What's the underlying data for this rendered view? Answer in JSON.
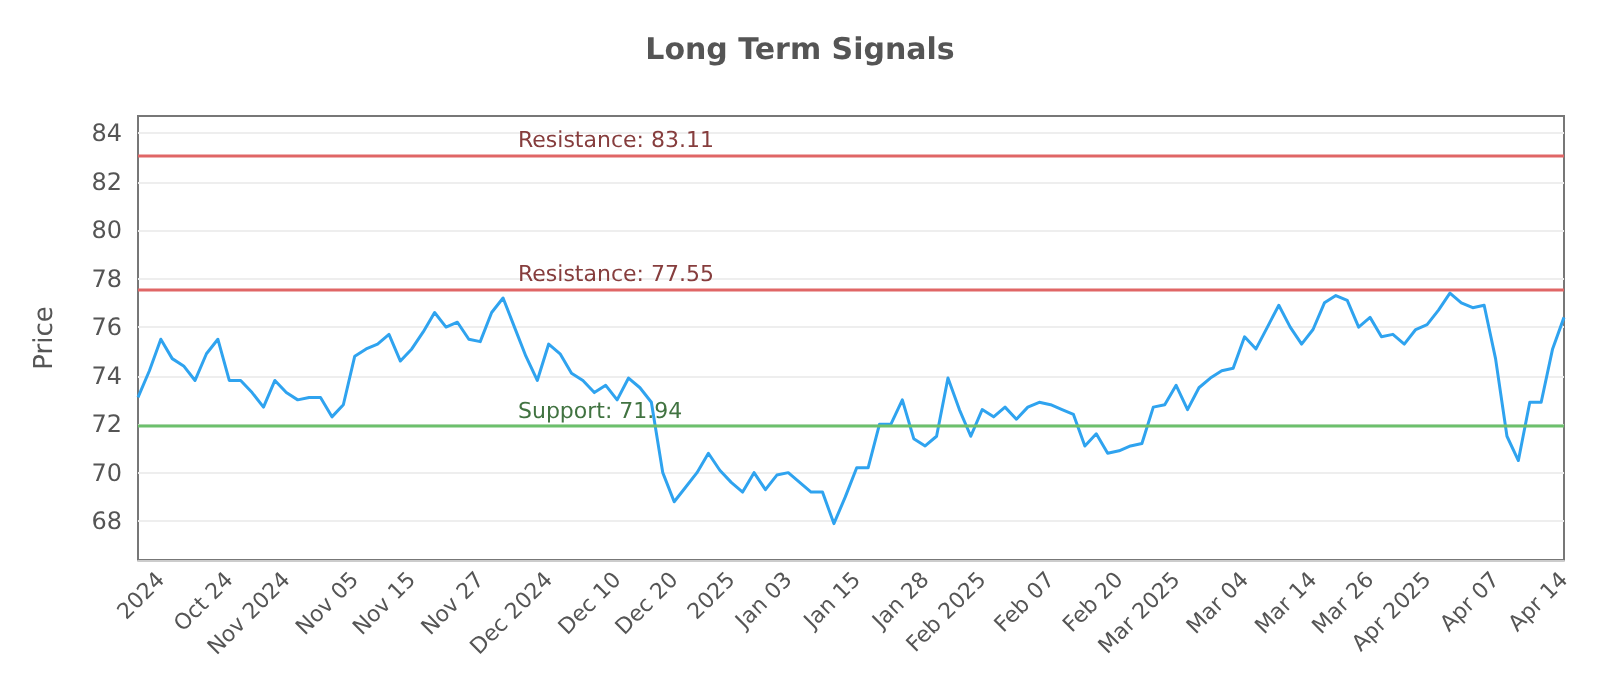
{
  "chart_data": {
    "type": "line",
    "title": "Long Term Signals",
    "ylabel": "Price",
    "categories": [
      null,
      null,
      "2024",
      null,
      null,
      null,
      null,
      null,
      "Oct 24",
      null,
      null,
      null,
      null,
      "Nov 2024",
      null,
      null,
      null,
      null,
      null,
      "Nov 05",
      null,
      null,
      null,
      null,
      "Nov 15",
      null,
      null,
      null,
      null,
      null,
      "Nov 27",
      null,
      null,
      null,
      null,
      null,
      "Dec 2024",
      null,
      null,
      null,
      null,
      null,
      "Dec 10",
      null,
      null,
      null,
      null,
      "Dec 20",
      null,
      null,
      null,
      null,
      "2025",
      null,
      null,
      null,
      null,
      "Jan 03",
      null,
      null,
      null,
      null,
      null,
      "Jan 15",
      null,
      null,
      null,
      null,
      null,
      "Jan 28",
      null,
      null,
      null,
      null,
      "Feb 2025",
      null,
      null,
      null,
      null,
      null,
      "Feb 07",
      null,
      null,
      null,
      null,
      null,
      "Feb 20",
      null,
      null,
      null,
      null,
      "Mar 2025",
      null,
      null,
      null,
      null,
      null,
      "Mar 04",
      null,
      null,
      null,
      null,
      null,
      "Mar 14",
      null,
      null,
      null,
      null,
      "Mar 26",
      null,
      null,
      null,
      null,
      "Apr 2025",
      null,
      null,
      null,
      null,
      null,
      "Apr 07",
      null,
      null,
      null,
      null,
      null,
      "Apr 14"
    ],
    "series": [
      {
        "color": "#2fa3ef",
        "values": [
          73.1,
          74.2,
          75.5,
          74.7,
          74.4,
          73.8,
          74.9,
          75.5,
          73.8,
          73.8,
          73.3,
          72.7,
          73.8,
          73.3,
          73.0,
          73.1,
          73.1,
          72.3,
          72.8,
          74.8,
          75.1,
          75.3,
          75.7,
          74.6,
          75.1,
          75.8,
          76.6,
          76.0,
          76.2,
          75.5,
          75.4,
          76.6,
          77.2,
          76.0,
          74.8,
          73.8,
          75.3,
          74.9,
          74.1,
          73.8,
          73.3,
          73.6,
          73.0,
          73.9,
          73.5,
          72.9,
          70.0,
          68.8,
          69.4,
          70.0,
          70.8,
          70.1,
          69.6,
          69.2,
          70.0,
          69.3,
          69.9,
          70.0,
          69.6,
          69.2,
          69.2,
          67.9,
          69.0,
          70.2,
          70.2,
          72.0,
          72.0,
          73.0,
          71.4,
          71.1,
          71.5,
          73.9,
          72.6,
          71.5,
          72.6,
          72.3,
          72.7,
          72.2,
          72.7,
          72.9,
          72.8,
          72.6,
          72.4,
          71.1,
          71.6,
          70.8,
          70.9,
          71.1,
          71.2,
          72.7,
          72.8,
          73.6,
          72.6,
          73.5,
          73.9,
          74.2,
          74.3,
          75.6,
          75.1,
          76.0,
          76.9,
          76.0,
          75.3,
          75.9,
          77.0,
          77.3,
          77.1,
          76.0,
          76.4,
          75.6,
          75.7,
          75.3,
          75.9,
          76.1,
          76.7,
          77.4,
          77.0,
          76.8,
          76.9,
          74.7,
          71.5,
          70.5,
          72.9,
          72.9,
          75.1,
          76.4
        ]
      }
    ],
    "ylim": [
      66.4,
      84.7
    ],
    "yticks": [
      68,
      70,
      72,
      74,
      76,
      78,
      80,
      82,
      84
    ],
    "grid": "y",
    "marker": "none",
    "ref_lines": [
      {
        "axis": "y",
        "value": 83.11,
        "label": "Resistance: 83.11",
        "color": "#e06666"
      },
      {
        "axis": "y",
        "value": 77.55,
        "label": "Resistance: 77.55",
        "color": "#e06666"
      },
      {
        "axis": "y",
        "value": 71.94,
        "label": "Support: 71.94",
        "color": "#6cc06c"
      }
    ]
  }
}
